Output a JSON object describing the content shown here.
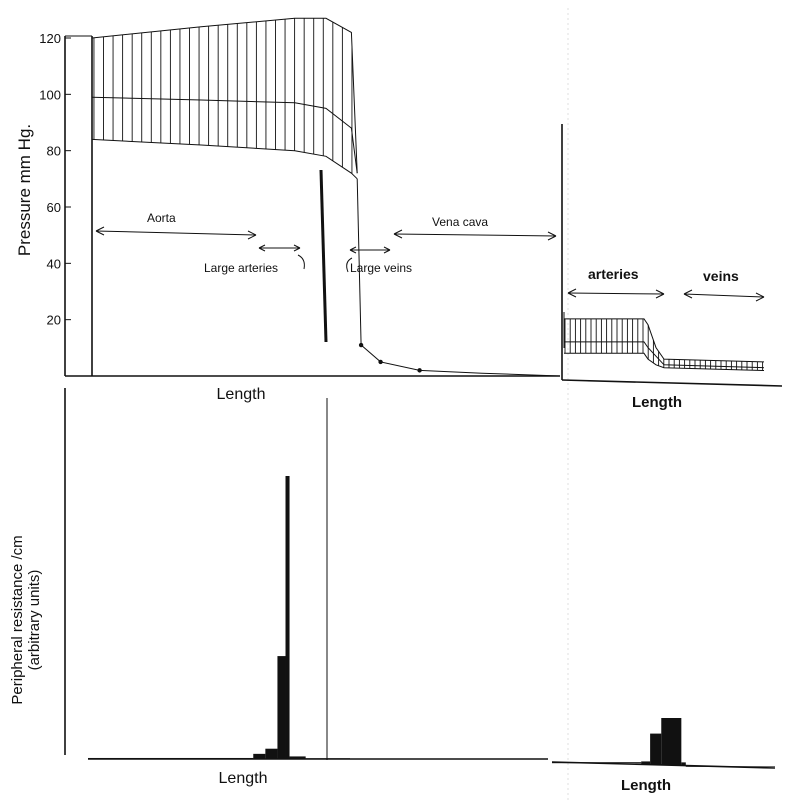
{
  "chart_data": [
    {
      "type": "area",
      "panel": "systemic pressure",
      "ylabel": "Pressure  mm Hg.",
      "xlabel": "Length",
      "ylim": [
        0,
        120
      ],
      "yticks": [
        "20",
        "40",
        "60",
        "80",
        "100",
        "120"
      ],
      "series": [
        {
          "role": "systolic",
          "x": [
            0,
            28,
            52,
            60,
            66.5,
            68
          ],
          "values": [
            120,
            124,
            127,
            127,
            122,
            72
          ]
        },
        {
          "role": "mean",
          "x": [
            0,
            28,
            52,
            60,
            66.5,
            68
          ],
          "values": [
            99,
            98,
            97,
            95,
            88,
            72
          ]
        },
        {
          "role": "diastolic",
          "x": [
            0,
            28,
            52,
            60,
            66.5,
            68
          ],
          "values": [
            84,
            82,
            80,
            78,
            72,
            70
          ]
        },
        {
          "role": "venous",
          "x": [
            68,
            69,
            74,
            84,
            100,
            120
          ],
          "values": [
            70,
            11,
            5,
            2,
            1,
            0
          ]
        }
      ],
      "annotations": [
        "Aorta",
        "Large arteries",
        "Large veins",
        "Vena cava"
      ]
    },
    {
      "type": "area",
      "panel": "pulmonary pressure",
      "xlabel": "Length",
      "ylim": [
        0,
        120
      ],
      "series": [
        {
          "role": "systolic",
          "x": [
            0,
            40,
            42,
            46,
            50,
            100
          ],
          "values": [
            22,
            22,
            20,
            12,
            8,
            7
          ]
        },
        {
          "role": "mean",
          "x": [
            0,
            40,
            42,
            46,
            50,
            100
          ],
          "values": [
            14,
            14,
            12,
            9,
            6,
            5
          ]
        },
        {
          "role": "diastolic",
          "x": [
            0,
            40,
            42,
            46,
            50,
            100
          ],
          "values": [
            10,
            10,
            8,
            6,
            5,
            4
          ]
        }
      ],
      "annotations": [
        "arteries",
        "veins"
      ]
    },
    {
      "type": "bar",
      "panel": "systemic resistance",
      "ylabel": "Peripheral resistance /cm",
      "ylabel2": "(arbitrary units)",
      "xlabel": "Length",
      "bars": [
        {
          "x0": 0,
          "x1": 82,
          "value": 0.4
        },
        {
          "x0": 82,
          "x1": 88,
          "value": 2
        },
        {
          "x0": 88,
          "x1": 94,
          "value": 4
        },
        {
          "x0": 94,
          "x1": 98,
          "value": 40
        },
        {
          "x0": 98,
          "x1": 100,
          "value": 110
        },
        {
          "x0": 100,
          "x1": 108,
          "value": 1
        },
        {
          "x0": 108,
          "x1": 130,
          "value": 0.3
        }
      ]
    },
    {
      "type": "bar",
      "panel": "pulmonary resistance",
      "xlabel": "Length",
      "bars": [
        {
          "x0": 0,
          "x1": 40,
          "value": 0.4
        },
        {
          "x0": 40,
          "x1": 44,
          "value": 1.2
        },
        {
          "x0": 44,
          "x1": 49,
          "value": 12
        },
        {
          "x0": 49,
          "x1": 58,
          "value": 18
        },
        {
          "x0": 58,
          "x1": 60,
          "value": 1.2
        },
        {
          "x0": 60,
          "x1": 100,
          "value": 0.2
        }
      ]
    }
  ]
}
